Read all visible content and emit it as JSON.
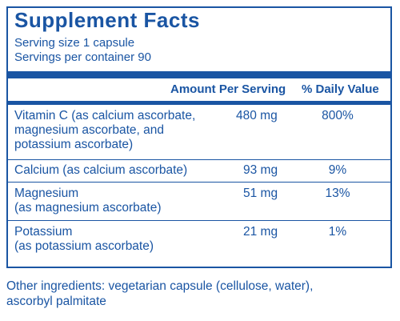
{
  "title": "Supplement Facts",
  "serving_size": "Serving size  1 capsule",
  "servings_per_container": "Servings per container  90",
  "headers": {
    "amount": "Amount Per Serving",
    "daily_value": "% Daily Value"
  },
  "rows": [
    {
      "line1": "Vitamin C (as calcium ascorbate,",
      "line2": "magnesium ascorbate, and",
      "line3": "potassium ascorbate)",
      "amount": "480 mg",
      "dv": "800%"
    },
    {
      "line1": "Calcium (as calcium ascorbate)",
      "amount": "93 mg",
      "dv": "9%"
    },
    {
      "line1": "Magnesium",
      "line2": "(as magnesium ascorbate)",
      "amount": "51 mg",
      "dv": "13%"
    },
    {
      "line1": "Potassium",
      "line2": "(as potassium ascorbate)",
      "amount": "21 mg",
      "dv": "1%"
    }
  ],
  "other_ingredients": {
    "line1": "Other ingredients: vegetarian capsule (cellulose, water),",
    "line2": "ascorbyl palmitate"
  },
  "colors": {
    "accent": "#1a55a3"
  }
}
